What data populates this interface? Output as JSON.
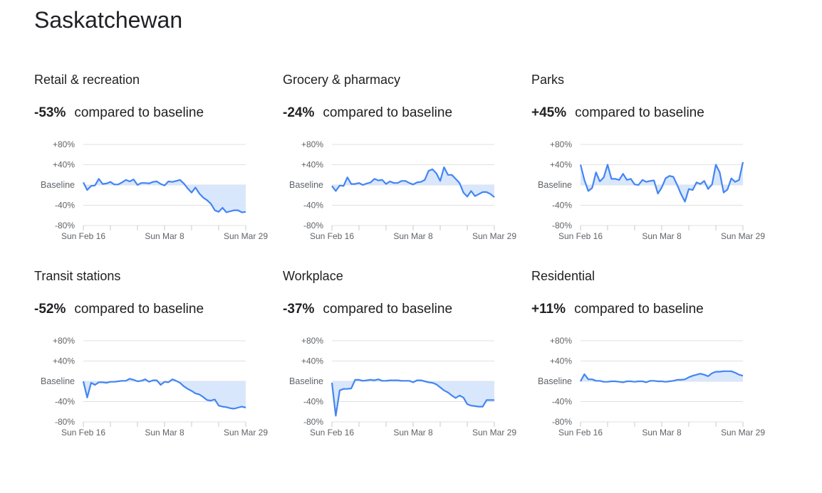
{
  "page_title": "Saskatchewan",
  "comparison_text": "compared to baseline",
  "colors": {
    "line": "#4285f4",
    "fill": "#d2e3fc",
    "grid": "#e0e0e0"
  },
  "chart_data": [
    {
      "type": "line",
      "title": "Retail & recreation",
      "headline": "-53%",
      "x_ticks": [
        "Sun Feb 16",
        "Sun Mar 8",
        "Sun Mar 29"
      ],
      "y_ticks": [
        "+80%",
        "+40%",
        "Baseline",
        "-40%",
        "-80%"
      ],
      "ylim": [
        -80,
        80
      ],
      "x_range": [
        "Feb 16",
        "Mar 29"
      ],
      "values": [
        5,
        -10,
        -2,
        -1,
        12,
        2,
        3,
        6,
        1,
        1,
        5,
        10,
        7,
        11,
        0,
        4,
        4,
        3,
        6,
        7,
        2,
        -1,
        7,
        6,
        8,
        10,
        3,
        -7,
        -15,
        -5,
        -17,
        -25,
        -30,
        -37,
        -50,
        -53,
        -45,
        -54,
        -52,
        -50,
        -50,
        -54,
        -53
      ]
    },
    {
      "type": "line",
      "title": "Grocery & pharmacy",
      "headline": "-24%",
      "x_ticks": [
        "Sun Feb 16",
        "Sun Mar 8",
        "Sun Mar 29"
      ],
      "y_ticks": [
        "+80%",
        "+40%",
        "Baseline",
        "-40%",
        "-80%"
      ],
      "ylim": [
        -80,
        80
      ],
      "x_range": [
        "Feb 16",
        "Mar 29"
      ],
      "values": [
        -2,
        -12,
        -1,
        -2,
        15,
        2,
        2,
        4,
        0,
        3,
        5,
        12,
        9,
        10,
        2,
        7,
        4,
        4,
        8,
        8,
        4,
        1,
        5,
        6,
        10,
        28,
        31,
        23,
        8,
        35,
        20,
        20,
        12,
        4,
        -15,
        -23,
        -12,
        -22,
        -18,
        -14,
        -14,
        -18,
        -24
      ]
    },
    {
      "type": "line",
      "title": "Parks",
      "headline": "+45%",
      "x_ticks": [
        "Sun Feb 16",
        "Sun Mar 8",
        "Sun Mar 29"
      ],
      "y_ticks": [
        "+80%",
        "+40%",
        "Baseline",
        "-40%",
        "-80%"
      ],
      "ylim": [
        -80,
        80
      ],
      "x_range": [
        "Feb 16",
        "Mar 29"
      ],
      "values": [
        40,
        10,
        -12,
        -6,
        25,
        7,
        15,
        40,
        12,
        12,
        10,
        22,
        10,
        12,
        1,
        0,
        10,
        6,
        8,
        9,
        -17,
        -5,
        13,
        18,
        16,
        0,
        -18,
        -33,
        -8,
        -10,
        5,
        2,
        8,
        -8,
        1,
        40,
        25,
        -15,
        -9,
        13,
        6,
        10,
        45
      ]
    },
    {
      "type": "line",
      "title": "Transit stations",
      "headline": "-52%",
      "x_ticks": [
        "Sun Feb 16",
        "Sun Mar 8",
        "Sun Mar 29"
      ],
      "y_ticks": [
        "+80%",
        "+40%",
        "Baseline",
        "-40%",
        "-80%"
      ],
      "ylim": [
        -80,
        80
      ],
      "x_range": [
        "Feb 16",
        "Mar 29"
      ],
      "values": [
        0,
        -32,
        -3,
        -7,
        -2,
        -2,
        -3,
        -1,
        -1,
        0,
        1,
        1,
        5,
        3,
        0,
        1,
        4,
        -1,
        2,
        2,
        -7,
        -1,
        -2,
        4,
        1,
        -3,
        -10,
        -15,
        -19,
        -24,
        -26,
        -31,
        -37,
        -38,
        -36,
        -48,
        -50,
        -51,
        -53,
        -54,
        -52,
        -50,
        -52
      ]
    },
    {
      "type": "line",
      "title": "Workplace",
      "headline": "-37%",
      "x_ticks": [
        "Sun Feb 16",
        "Sun Mar 8",
        "Sun Mar 29"
      ],
      "y_ticks": [
        "+80%",
        "+40%",
        "Baseline",
        "-40%",
        "-80%"
      ],
      "ylim": [
        -80,
        80
      ],
      "x_range": [
        "Feb 16",
        "Mar 29"
      ],
      "values": [
        -3,
        -68,
        -18,
        -15,
        -15,
        -14,
        3,
        3,
        1,
        2,
        3,
        2,
        4,
        1,
        1,
        2,
        2,
        2,
        1,
        1,
        1,
        -2,
        2,
        2,
        0,
        -2,
        -3,
        -6,
        -12,
        -18,
        -22,
        -28,
        -33,
        -28,
        -32,
        -45,
        -48,
        -49,
        -50,
        -50,
        -37,
        -37,
        -37
      ]
    },
    {
      "type": "line",
      "title": "Residential",
      "headline": "+11%",
      "x_ticks": [
        "Sun Feb 16",
        "Sun Mar 8",
        "Sun Mar 29"
      ],
      "y_ticks": [
        "+80%",
        "+40%",
        "Baseline",
        "-40%",
        "-80%"
      ],
      "ylim": [
        -80,
        80
      ],
      "x_range": [
        "Feb 16",
        "Mar 29"
      ],
      "values": [
        0,
        14,
        4,
        4,
        1,
        1,
        -1,
        -1,
        0,
        0,
        -1,
        -2,
        0,
        0,
        -1,
        0,
        0,
        -2,
        1,
        1,
        0,
        0,
        -1,
        0,
        1,
        3,
        3,
        4,
        8,
        11,
        13,
        15,
        13,
        10,
        16,
        19,
        19,
        20,
        20,
        20,
        17,
        13,
        11
      ]
    }
  ]
}
